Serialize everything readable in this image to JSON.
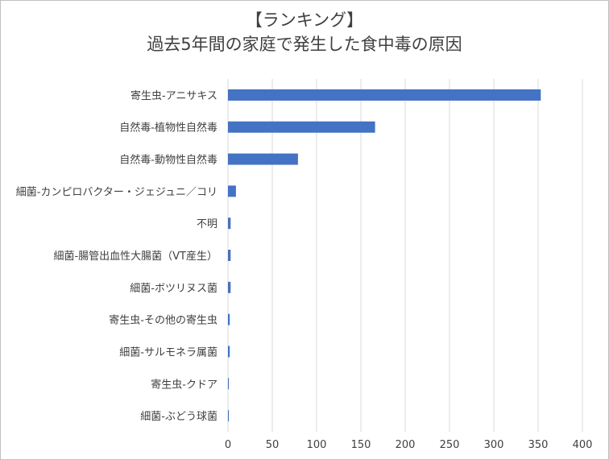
{
  "chart_data": {
    "type": "bar",
    "orientation": "horizontal",
    "title": "【ランキング】",
    "subtitle": "過去5年間の家庭で発生した食中毒の原因",
    "categories": [
      "寄生虫-アニサキス",
      "自然毒-植物性自然毒",
      "自然毒-動物性自然毒",
      "細菌-カンピロバクター・ジェジュニ／コリ",
      "不明",
      "細菌-腸管出血性大腸菌（VT産生）",
      "細菌-ボツリヌス菌",
      "寄生虫-その他の寄生虫",
      "細菌-サルモネラ属菌",
      "寄生虫-クドア",
      "細菌-ぶどう球菌"
    ],
    "values": [
      353,
      166,
      79,
      9,
      3,
      3,
      3,
      2,
      2,
      1,
      1
    ],
    "xlim": [
      0,
      400
    ],
    "xticks": [
      0,
      50,
      100,
      150,
      200,
      250,
      300,
      350,
      400
    ],
    "grid": true,
    "bar_color": "#4472c4",
    "grid_color": "#d9d9d9",
    "legend": "none"
  }
}
